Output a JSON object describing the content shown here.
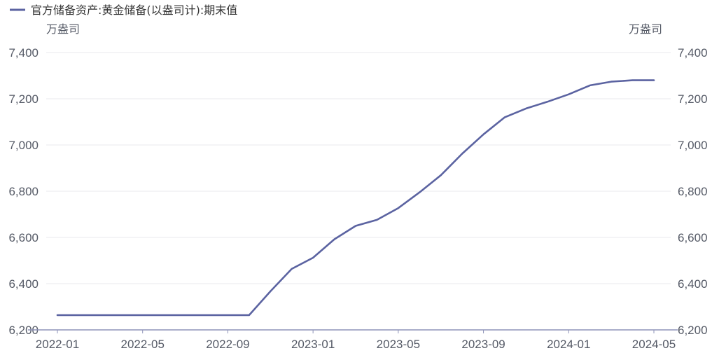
{
  "chart_data": {
    "type": "line",
    "legend": {
      "label": "官方储备资产:黄金储备(以盎司计):期末值",
      "placement": "top-left"
    },
    "y_unit_left": "万盎司",
    "y_unit_right": "万盎司",
    "ylim": [
      6200,
      7400
    ],
    "y_ticks": [
      "6,200",
      "6,400",
      "6,600",
      "6,800",
      "7,000",
      "7,200",
      "7,400"
    ],
    "y_tick_values": [
      6200,
      6400,
      6600,
      6800,
      7000,
      7200,
      7400
    ],
    "x_ticks": [
      "2022-01",
      "2022-05",
      "2022-09",
      "2023-01",
      "2023-05",
      "2023-09",
      "2024-01",
      "2024-05"
    ],
    "grid": true,
    "colors": {
      "line": "#5b63a1",
      "grid": "#e8e8ee",
      "axis": "#8e93b8"
    },
    "series": [
      {
        "name": "官方储备资产:黄金储备(以盎司计):期末值",
        "x": [
          "2022-01",
          "2022-02",
          "2022-03",
          "2022-04",
          "2022-05",
          "2022-06",
          "2022-07",
          "2022-08",
          "2022-09",
          "2022-10",
          "2022-11",
          "2022-12",
          "2023-01",
          "2023-02",
          "2023-03",
          "2023-04",
          "2023-05",
          "2023-06",
          "2023-07",
          "2023-08",
          "2023-09",
          "2023-10",
          "2023-11",
          "2023-12",
          "2024-01",
          "2024-02",
          "2024-03",
          "2024-04",
          "2024-05"
        ],
        "values": [
          6264,
          6264,
          6264,
          6264,
          6264,
          6264,
          6264,
          6264,
          6264,
          6264,
          6367,
          6464,
          6512,
          6592,
          6650,
          6676,
          6727,
          6795,
          6869,
          6962,
          7046,
          7120,
          7158,
          7187,
          7219,
          7258,
          7274,
          7280,
          7280
        ]
      }
    ]
  }
}
